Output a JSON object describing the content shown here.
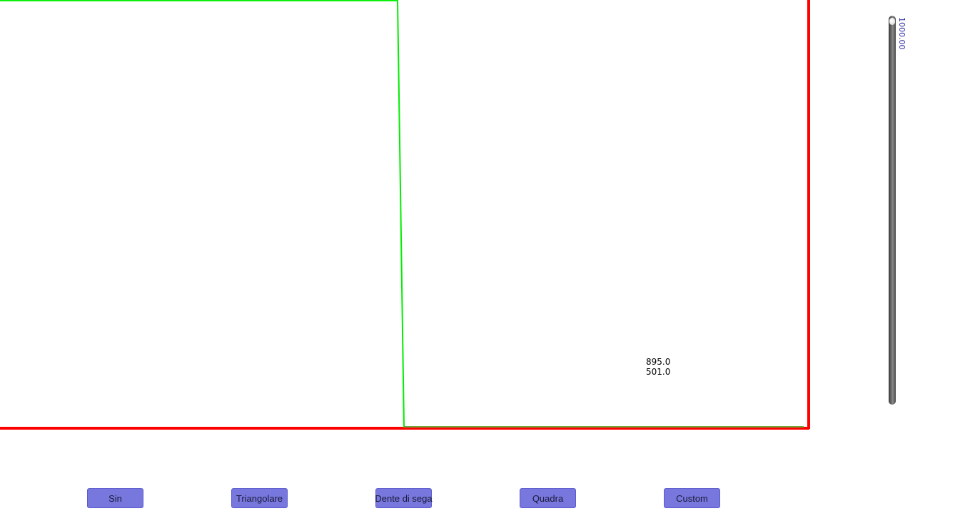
{
  "plot": {
    "border_color": "#ff0000",
    "wave_color": "#00ee00",
    "background": "#ffffff"
  },
  "readout": {
    "x": "895.0",
    "y": "501.0"
  },
  "slider": {
    "value_label": "1000.00",
    "value": 1000,
    "label_color": "#2a2aa0"
  },
  "buttons": [
    {
      "id": "sin",
      "label": "Sin"
    },
    {
      "id": "triangolare",
      "label": "Triangolare"
    },
    {
      "id": "dente-di-sega",
      "label": "Dente di sega"
    },
    {
      "id": "quadra",
      "label": "Quadra"
    },
    {
      "id": "custom",
      "label": "Custom"
    }
  ],
  "accent": {
    "button_fill": "#7777dd",
    "button_text": "#1a1a3a"
  }
}
